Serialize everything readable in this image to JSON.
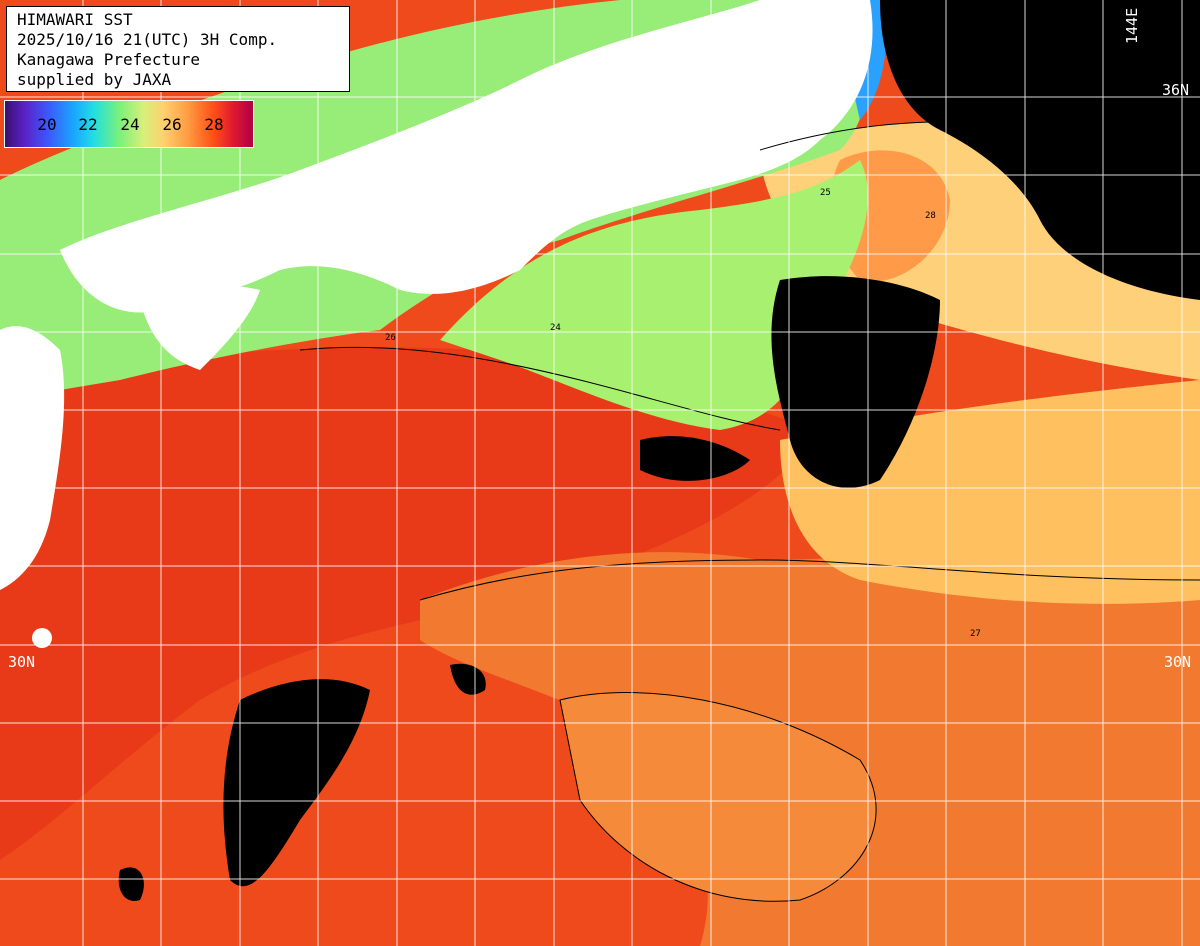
{
  "header": {
    "line1": "HIMAWARI SST",
    "line2": "2025/10/16 21(UTC) 3H Comp.",
    "line3": "Kanagawa Prefecture",
    "line4": "supplied by JAXA"
  },
  "legend": {
    "ticks": [
      "20",
      "22",
      "24",
      "26",
      "28"
    ]
  },
  "labels": {
    "lat_top_right": "36N",
    "lat_left": "30N",
    "lat_right": "30N",
    "lon_top": "144E"
  },
  "contour_labels": [
    "24",
    "25",
    "26",
    "27",
    "28"
  ],
  "colors": {
    "land": "#ffffff",
    "cloud_missing": "#000000",
    "grid": "#ffffff",
    "contour": "#000000",
    "sst_22": "#40e0c0",
    "sst_24": "#a8f070",
    "sst_25": "#e8e880",
    "sst_26": "#ffc060",
    "sst_27": "#ff8a30",
    "sst_28": "#f04a18"
  }
}
